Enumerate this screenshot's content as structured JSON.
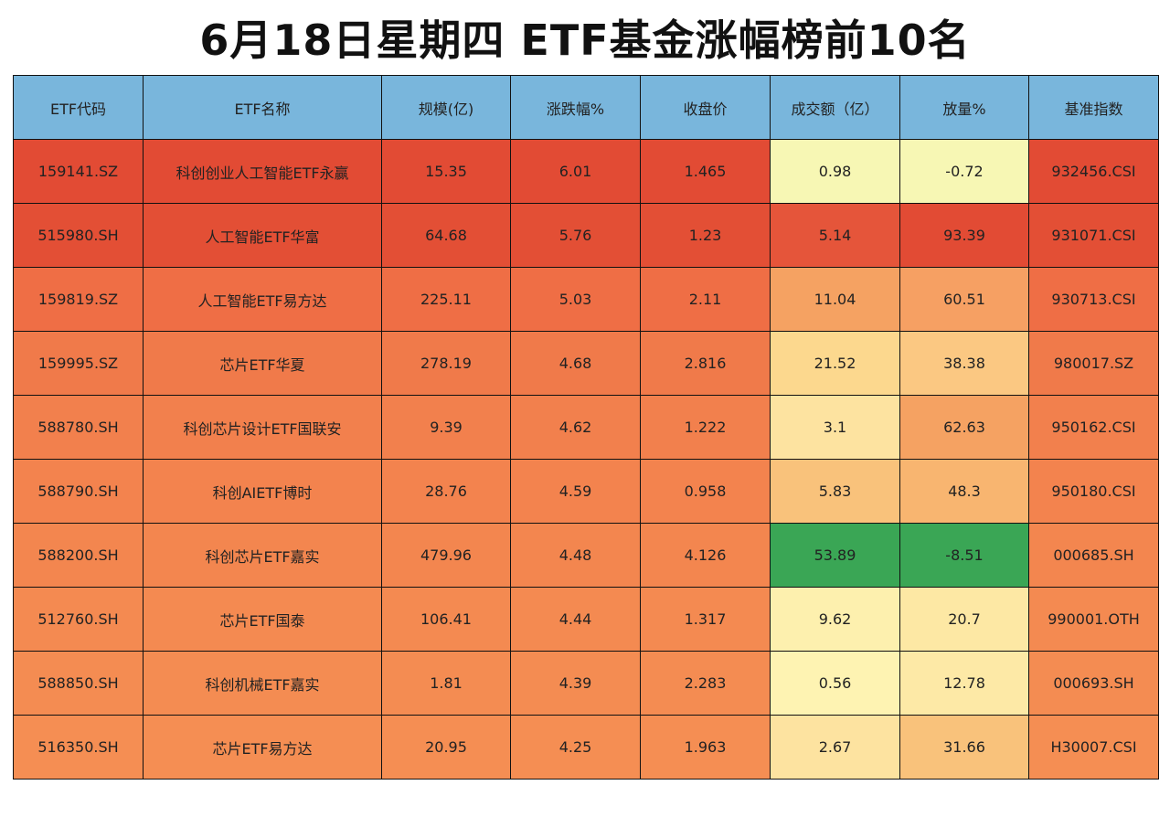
{
  "title": "6月18日星期四  ETF基金涨幅榜前10名",
  "table": {
    "header": [
      "ETF代码",
      "ETF名称",
      "规模(亿)",
      "涨跌幅%",
      "收盘价",
      "成交额（亿）",
      "放量%",
      "基准指数"
    ],
    "rows": [
      [
        "159141.SZ",
        "科创创业人工智能ETF永赢",
        "15.35",
        "6.01",
        "1.465",
        "0.98",
        "-0.72",
        "932456.CSI"
      ],
      [
        "515980.SH",
        "人工智能ETF华富",
        "64.68",
        "5.76",
        "1.23",
        "5.14",
        "93.39",
        "931071.CSI"
      ],
      [
        "159819.SZ",
        "人工智能ETF易方达",
        "225.11",
        "5.03",
        "2.11",
        "11.04",
        "60.51",
        "930713.CSI"
      ],
      [
        "159995.SZ",
        "芯片ETF华夏",
        "278.19",
        "4.68",
        "2.816",
        "21.52",
        "38.38",
        "980017.SZ"
      ],
      [
        "588780.SH",
        "科创芯片设计ETF国联安",
        "9.39",
        "4.62",
        "1.222",
        "3.1",
        "62.63",
        "950162.CSI"
      ],
      [
        "588790.SH",
        "科创AIETF博时",
        "28.76",
        "4.59",
        "0.958",
        "5.83",
        "48.3",
        "950180.CSI"
      ],
      [
        "588200.SH",
        "科创芯片ETF嘉实",
        "479.96",
        "4.48",
        "4.126",
        "53.89",
        "-8.51",
        "000685.SH"
      ],
      [
        "512760.SH",
        "芯片ETF国泰",
        "106.41",
        "4.44",
        "1.317",
        "9.62",
        "20.7",
        "990001.OTH"
      ],
      [
        "588850.SH",
        "科创机械ETF嘉实",
        "1.81",
        "4.39",
        "2.283",
        "0.56",
        "12.78",
        "000693.SH"
      ],
      [
        "516350.SH",
        "芯片ETF易方达",
        "20.95",
        "4.25",
        "1.963",
        "2.67",
        "31.66",
        "H30007.CSI"
      ]
    ]
  }
}
